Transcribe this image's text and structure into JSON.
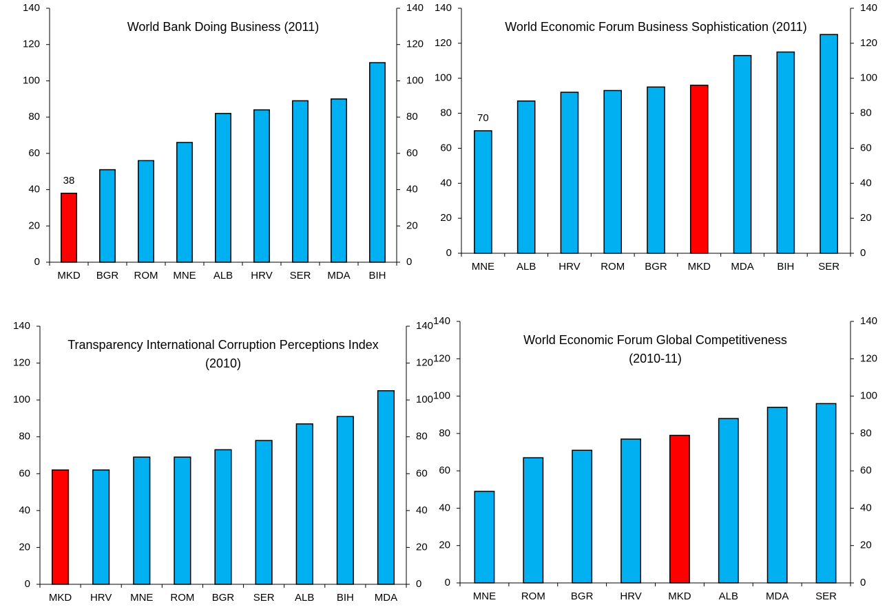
{
  "chart_data": [
    {
      "type": "bar",
      "title": "World Bank Doing Business (2011)",
      "categories": [
        "MKD",
        "BGR",
        "ROM",
        "MNE",
        "ALB",
        "HRV",
        "SER",
        "MDA",
        "BIH"
      ],
      "values": [
        38,
        51,
        56,
        66,
        82,
        84,
        89,
        90,
        110
      ],
      "value_labels": [
        "38",
        null,
        null,
        null,
        null,
        null,
        null,
        null,
        null
      ],
      "colors": [
        "#ff0000",
        "#00b0f0",
        "#00b0f0",
        "#00b0f0",
        "#00b0f0",
        "#00b0f0",
        "#00b0f0",
        "#00b0f0",
        "#00b0f0"
      ],
      "ylim": [
        0,
        140
      ],
      "yticks": [
        0,
        20,
        40,
        60,
        80,
        100,
        120,
        140
      ],
      "y2lim": [
        0,
        140
      ],
      "y2ticks": [
        0,
        20,
        40,
        60,
        80,
        100,
        120,
        140
      ]
    },
    {
      "type": "bar",
      "title": "World Economic Forum Business Sophistication (2011)",
      "categories": [
        "MNE",
        "ALB",
        "HRV",
        "ROM",
        "BGR",
        "MKD",
        "MDA",
        "BIH",
        "SER"
      ],
      "values": [
        70,
        87,
        92,
        93,
        95,
        96,
        113,
        115,
        125
      ],
      "value_labels": [
        "70",
        null,
        null,
        null,
        null,
        null,
        null,
        null,
        null
      ],
      "colors": [
        "#00b0f0",
        "#00b0f0",
        "#00b0f0",
        "#00b0f0",
        "#00b0f0",
        "#ff0000",
        "#00b0f0",
        "#00b0f0",
        "#00b0f0"
      ],
      "ylim": [
        0,
        140
      ],
      "yticks": [
        0,
        20,
        40,
        60,
        80,
        100,
        120,
        140
      ],
      "y2lim": [
        0,
        140
      ],
      "y2ticks": [
        0,
        20,
        40,
        60,
        80,
        100,
        120,
        140
      ]
    },
    {
      "type": "bar",
      "title": "Transparency International Corruption Perceptions Index (2010)",
      "categories": [
        "MKD",
        "HRV",
        "MNE",
        "ROM",
        "BGR",
        "SER",
        "ALB",
        "BIH",
        "MDA"
      ],
      "values": [
        62,
        62,
        69,
        69,
        73,
        78,
        87,
        91,
        105
      ],
      "colors": [
        "#ff0000",
        "#00b0f0",
        "#00b0f0",
        "#00b0f0",
        "#00b0f0",
        "#00b0f0",
        "#00b0f0",
        "#00b0f0",
        "#00b0f0"
      ],
      "ylim": [
        0,
        140
      ],
      "yticks": [
        0,
        20,
        40,
        60,
        80,
        100,
        120,
        140
      ],
      "y2lim": [
        0,
        140
      ],
      "y2ticks": [
        0,
        20,
        40,
        60,
        80,
        100,
        120,
        140
      ]
    },
    {
      "type": "bar",
      "title": "World Economic Forum Global Competitiveness (2010-11)",
      "categories": [
        "MNE",
        "ROM",
        "BGR",
        "HRV",
        "MKD",
        "ALB",
        "MDA",
        "SER"
      ],
      "values": [
        49,
        67,
        71,
        77,
        79,
        88,
        94,
        96
      ],
      "colors": [
        "#00b0f0",
        "#00b0f0",
        "#00b0f0",
        "#00b0f0",
        "#ff0000",
        "#00b0f0",
        "#00b0f0",
        "#00b0f0"
      ],
      "ylim": [
        0,
        140
      ],
      "yticks": [
        0,
        20,
        40,
        60,
        80,
        100,
        120,
        140
      ],
      "y2lim": [
        0,
        140
      ],
      "y2ticks": [
        0,
        20,
        40,
        60,
        80,
        100,
        120,
        140
      ]
    }
  ]
}
